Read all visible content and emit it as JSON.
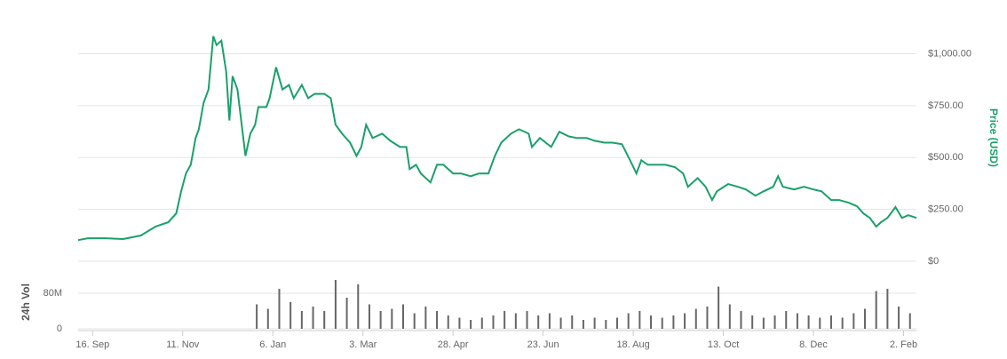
{
  "chart_data": [
    {
      "type": "line",
      "title": "Price (USD)",
      "color": "#1aa06a",
      "x": [
        -9,
        -3,
        8,
        19,
        30,
        39,
        47,
        52,
        55,
        58,
        61,
        64,
        66,
        69,
        72,
        75,
        77,
        80,
        83,
        85,
        87,
        90,
        92,
        95,
        98,
        101,
        103,
        108,
        110,
        114,
        118,
        122,
        125,
        130,
        134,
        138,
        144,
        148,
        151,
        155,
        160,
        164,
        167,
        170,
        174,
        180,
        185,
        191,
        195,
        197,
        201,
        204,
        210,
        214,
        218,
        224,
        229,
        235,
        240,
        246,
        250,
        254,
        260,
        265,
        271,
        273,
        278,
        285,
        290,
        296,
        301,
        307,
        312,
        318,
        323,
        329,
        334,
        338,
        341,
        345,
        351,
        356,
        362,
        367,
        370,
        376,
        381,
        385,
        388,
        395,
        401,
        406,
        412,
        417,
        423,
        426,
        429,
        436,
        442,
        448,
        453,
        459,
        464,
        470,
        475,
        479,
        483,
        487,
        490,
        494,
        499,
        503,
        507,
        512
      ],
      "values": [
        102,
        111,
        111,
        107,
        124,
        167,
        188,
        231,
        337,
        423,
        465,
        594,
        636,
        764,
        828,
        1085,
        1042,
        1063,
        914,
        679,
        892,
        828,
        700,
        508,
        615,
        658,
        743,
        743,
        786,
        935,
        828,
        850,
        786,
        850,
        786,
        807,
        807,
        786,
        658,
        615,
        572,
        508,
        551,
        658,
        594,
        615,
        581,
        551,
        551,
        444,
        465,
        423,
        380,
        465,
        465,
        423,
        423,
        410,
        423,
        423,
        508,
        572,
        615,
        636,
        615,
        551,
        594,
        551,
        624,
        602,
        594,
        594,
        581,
        572,
        572,
        564,
        487,
        423,
        487,
        465,
        465,
        465,
        453,
        423,
        359,
        401,
        359,
        295,
        337,
        372,
        359,
        346,
        316,
        337,
        359,
        410,
        359,
        346,
        359,
        346,
        337,
        295,
        295,
        282,
        265,
        231,
        209,
        167,
        188,
        209,
        261,
        209,
        222,
        209
      ],
      "xlim": [
        -9,
        512
      ],
      "ylim": [
        0,
        1225
      ],
      "yticks": [
        {
          "value": 0,
          "label": "$0"
        },
        {
          "value": 250,
          "label": "$250.00"
        },
        {
          "value": 500,
          "label": "$500.00"
        },
        {
          "value": 750,
          "label": "$750.00"
        },
        {
          "value": 1000,
          "label": "$1,000.00"
        }
      ],
      "grid": true
    },
    {
      "type": "bar",
      "title": "24h Vol",
      "color": "#666666",
      "x": [
        102,
        109,
        116,
        123,
        130,
        137,
        144,
        151,
        158,
        165,
        172,
        179,
        186,
        193,
        200,
        207,
        214,
        221,
        228,
        235,
        242,
        249,
        256,
        263,
        270,
        277,
        284,
        291,
        298,
        305,
        312,
        319,
        326,
        333,
        340,
        347,
        354,
        361,
        368,
        375,
        382,
        389,
        396,
        403,
        410,
        417,
        424,
        431,
        438,
        445,
        452,
        459,
        466,
        473,
        480,
        487,
        494,
        501,
        508
      ],
      "values": [
        55000000,
        45000000,
        90000000,
        60000000,
        40000000,
        50000000,
        40000000,
        110000000,
        70000000,
        100000000,
        55000000,
        40000000,
        45000000,
        55000000,
        35000000,
        50000000,
        40000000,
        30000000,
        25000000,
        20000000,
        25000000,
        30000000,
        40000000,
        35000000,
        40000000,
        30000000,
        35000000,
        25000000,
        30000000,
        20000000,
        25000000,
        20000000,
        25000000,
        35000000,
        40000000,
        30000000,
        25000000,
        30000000,
        35000000,
        45000000,
        50000000,
        95000000,
        55000000,
        40000000,
        30000000,
        25000000,
        30000000,
        40000000,
        35000000,
        30000000,
        25000000,
        30000000,
        25000000,
        35000000,
        45000000,
        85000000,
        90000000,
        50000000,
        35000000
      ],
      "xlim": [
        -9,
        512
      ],
      "ylim": [
        0,
        140000000
      ],
      "yticks": [
        0,
        {
          "value": 80000000,
          "label": "80M"
        }
      ],
      "xticks": [
        {
          "value": 0,
          "label": "16. Sep"
        },
        {
          "value": 56,
          "label": "11. Nov"
        },
        {
          "value": 112,
          "label": "6. Jan"
        },
        {
          "value": 168,
          "label": "3. Mar"
        },
        {
          "value": 224,
          "label": "28. Apr"
        },
        {
          "value": 280,
          "label": "23. Jun"
        },
        {
          "value": 336,
          "label": "18. Aug"
        },
        {
          "value": 392,
          "label": "13. Oct"
        },
        {
          "value": 448,
          "label": "8. Dec"
        },
        {
          "value": 504,
          "label": "2. Feb"
        }
      ],
      "grid": true
    }
  ]
}
